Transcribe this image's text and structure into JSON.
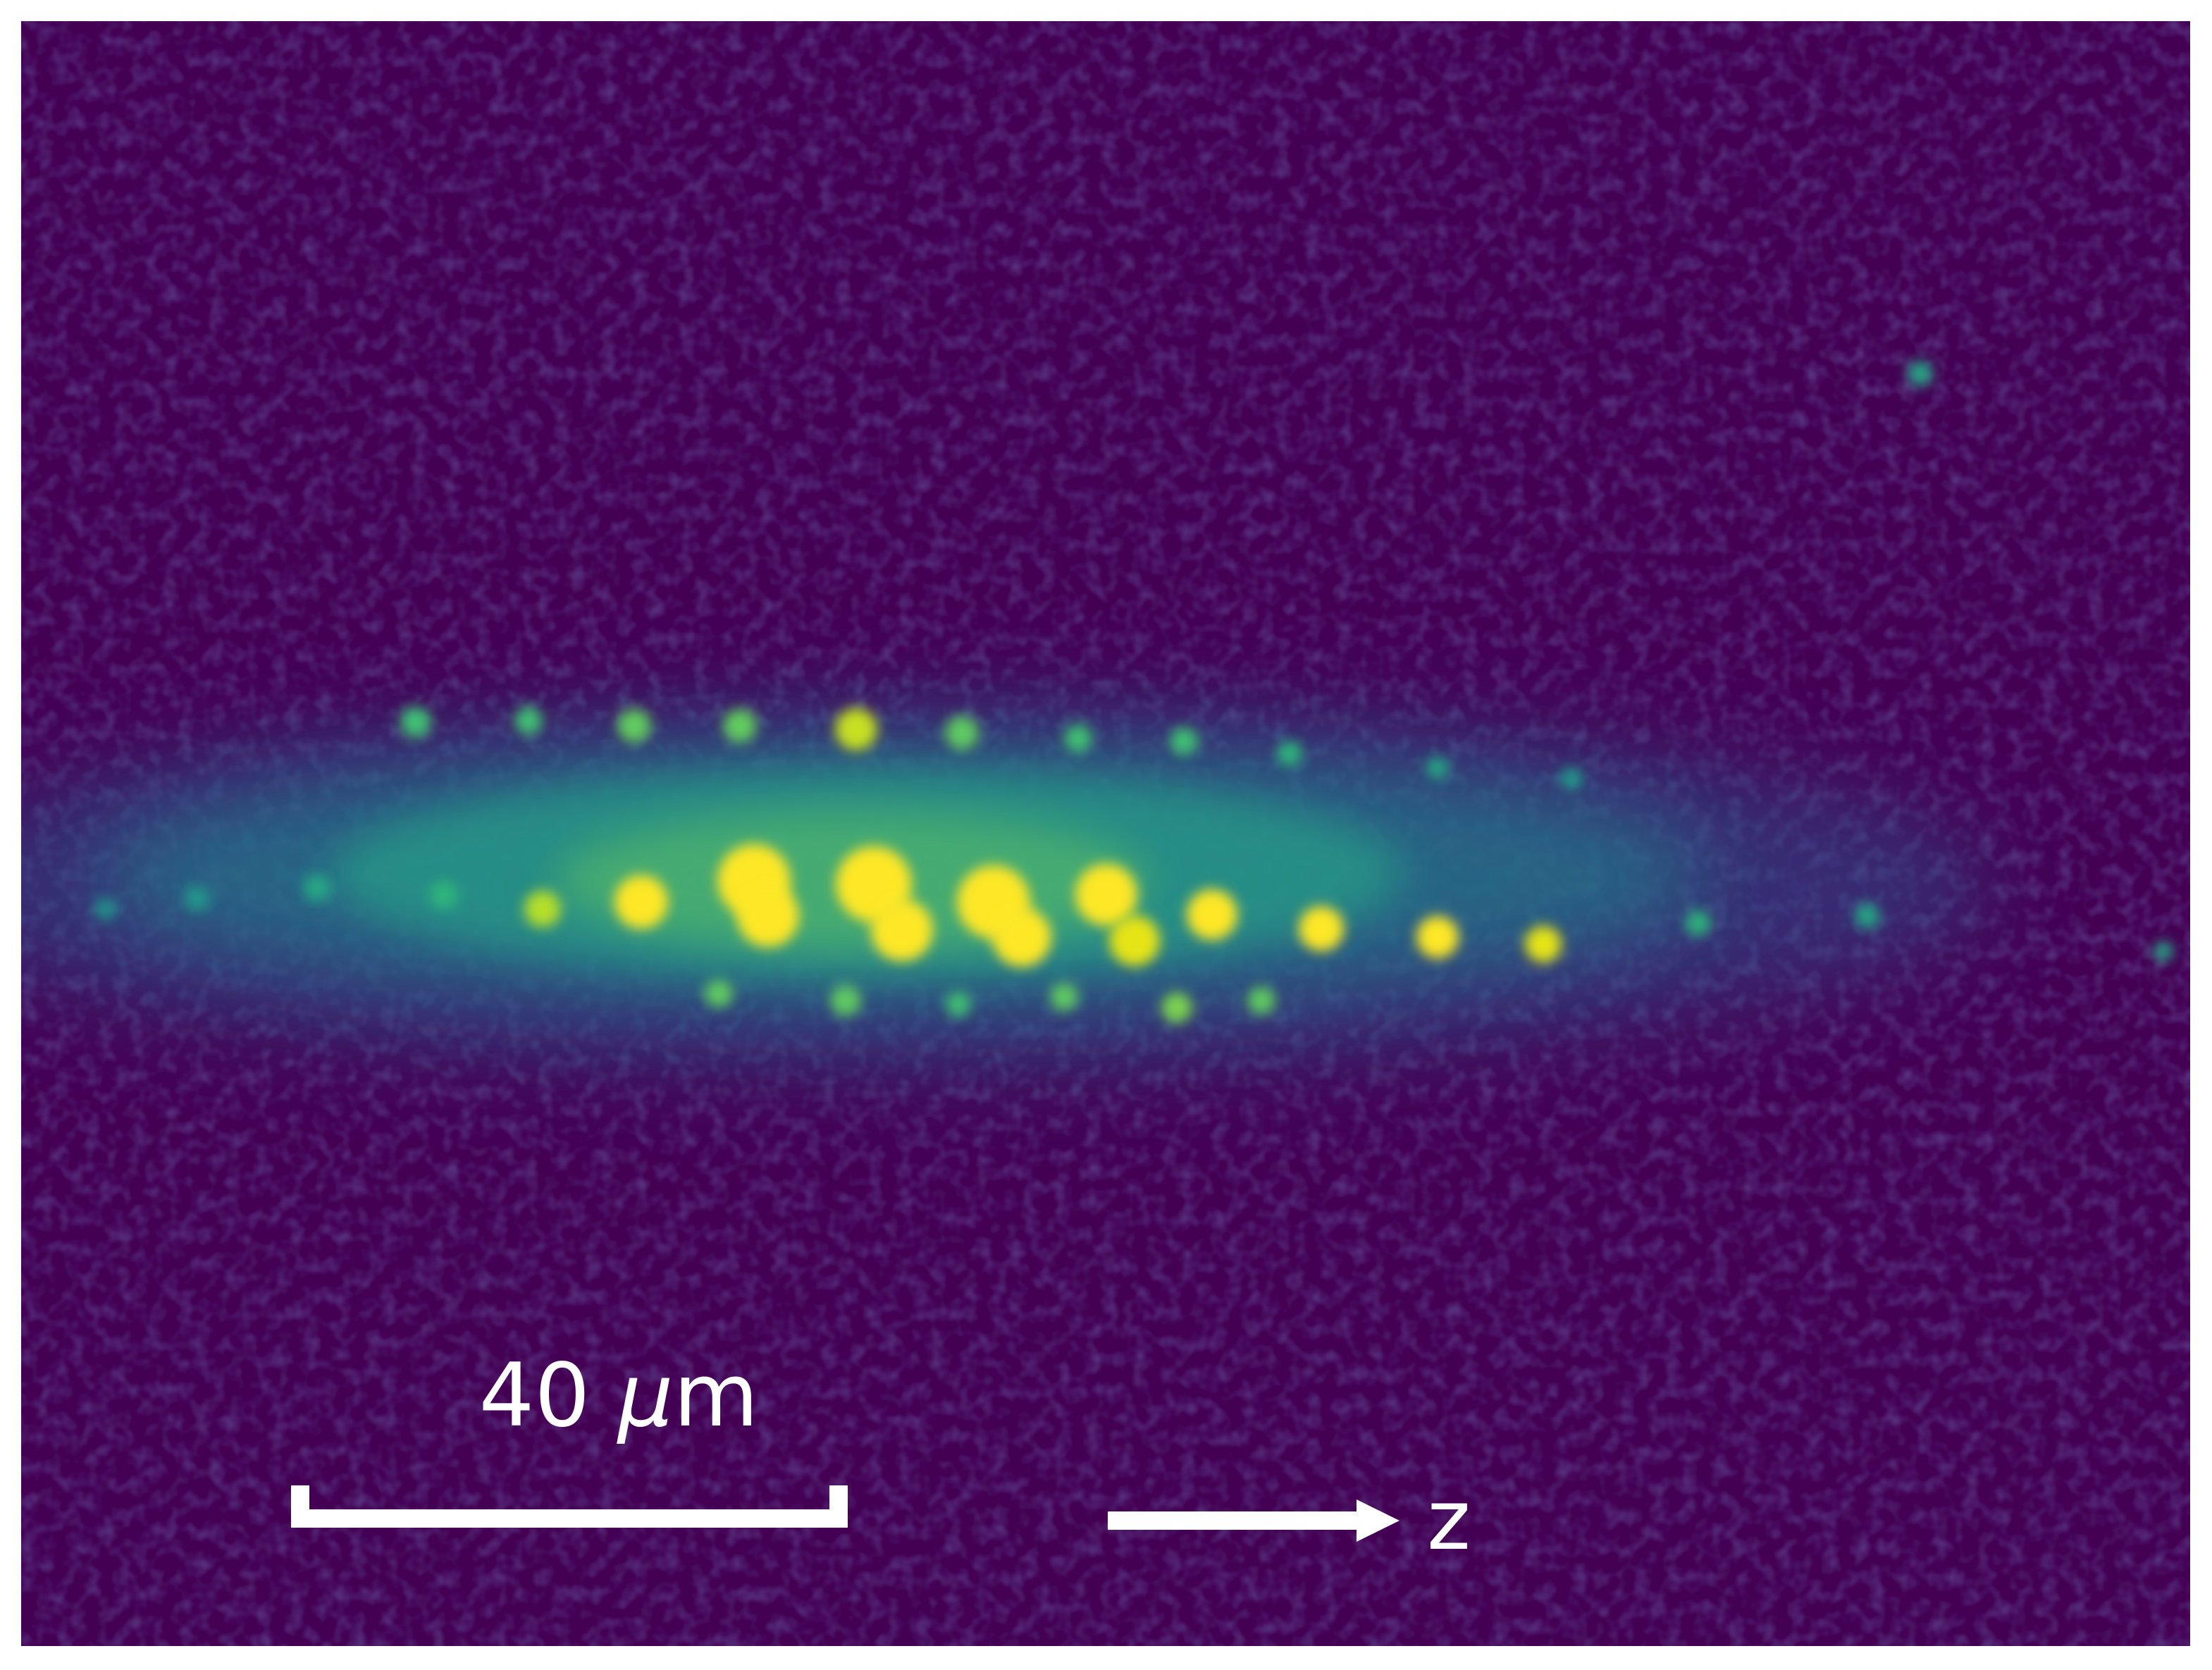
{
  "scale_bar": {
    "label_value": "40 ",
    "label_unit_symbol": "μ",
    "label_unit_rest": "m"
  },
  "axis_arrow": {
    "label": "z"
  },
  "colors": {
    "background": "#440154",
    "colormap_low": "#3b2a7a",
    "colormap_mid": "#1f9a8a",
    "colormap_high": "#fde725",
    "annotation": "#ffffff"
  }
}
